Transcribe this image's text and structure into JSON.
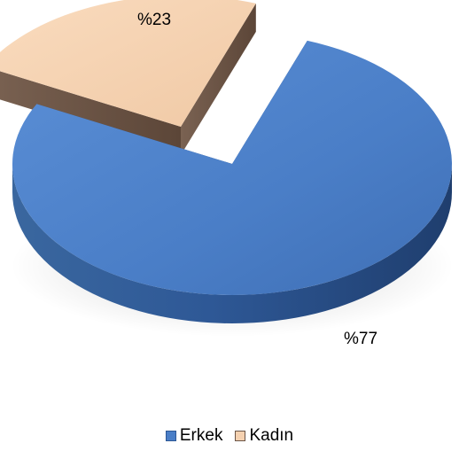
{
  "chart_data": {
    "type": "pie",
    "categories": [
      "Erkek",
      "Kadın"
    ],
    "values": [
      77,
      23
    ],
    "labels": [
      "%77",
      "%23"
    ],
    "colors": [
      "#4A7EC7",
      "#F5D1B0"
    ],
    "side_colors": [
      "#2E5896",
      "#6B5547"
    ],
    "style": "3d-exploded",
    "legend_position": "bottom"
  }
}
